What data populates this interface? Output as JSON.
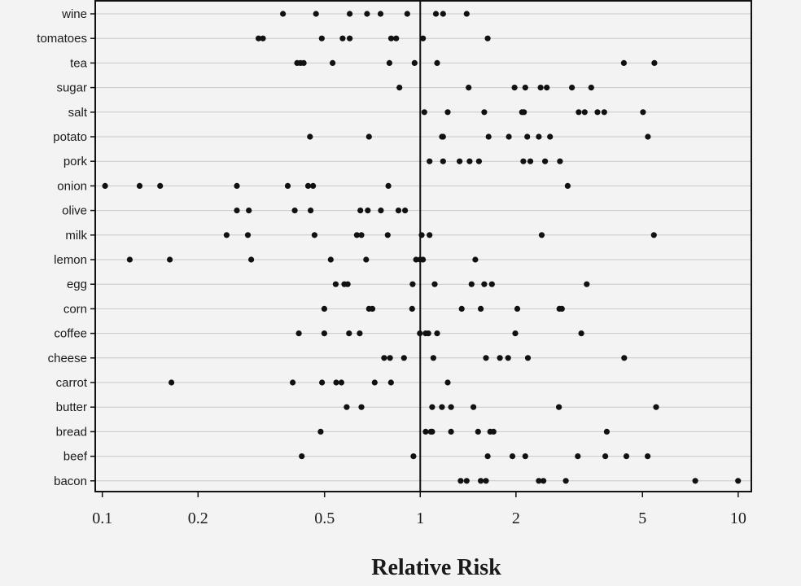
{
  "chart_data": {
    "type": "scatter",
    "title": "",
    "xlabel": "Relative Risk",
    "ylabel": "",
    "x_scale": "log",
    "xlim": [
      0.095,
      11.0
    ],
    "xticks": [
      0.1,
      0.2,
      0.5,
      1,
      2,
      5,
      10
    ],
    "xtick_labels": [
      "0.1",
      "0.2",
      "0.5",
      "1",
      "2",
      "5",
      "10"
    ],
    "reference_line": 1,
    "grid": "horizontal",
    "marker_color": "#111111",
    "categories": [
      "wine",
      "tomatoes",
      "tea",
      "sugar",
      "salt",
      "potato",
      "pork",
      "onion",
      "olive",
      "milk",
      "lemon",
      "egg",
      "corn",
      "coffee",
      "cheese",
      "carrot",
      "butter",
      "bread",
      "beef",
      "bacon"
    ],
    "points": {
      "wine": [
        0.37,
        0.47,
        0.6,
        0.68,
        0.75,
        0.91,
        1.12,
        1.18,
        1.4
      ],
      "tomatoes": [
        0.31,
        0.32,
        0.49,
        0.57,
        0.6,
        0.81,
        0.84,
        1.02,
        1.63
      ],
      "tea": [
        0.41,
        0.42,
        0.43,
        0.53,
        0.8,
        0.96,
        1.13,
        4.37,
        5.45
      ],
      "sugar": [
        0.86,
        1.42,
        1.98,
        2.14,
        2.39,
        2.5,
        3.0,
        3.45
      ],
      "salt": [
        1.03,
        1.22,
        1.59,
        2.09,
        2.12,
        3.15,
        3.29,
        3.61,
        3.79,
        5.02
      ],
      "potato": [
        0.45,
        0.69,
        1.17,
        1.18,
        1.64,
        1.9,
        2.17,
        2.36,
        2.56,
        5.2
      ],
      "pork": [
        1.07,
        1.18,
        1.33,
        1.43,
        1.53,
        2.11,
        2.22,
        2.47,
        2.75
      ],
      "onion": [
        0.102,
        0.131,
        0.152,
        0.265,
        0.383,
        0.444,
        0.46,
        0.794,
        2.91
      ],
      "olive": [
        0.265,
        0.289,
        0.403,
        0.452,
        0.648,
        0.684,
        0.752,
        0.854,
        0.896
      ],
      "milk": [
        0.246,
        0.287,
        0.465,
        0.632,
        0.653,
        0.79,
        1.01,
        1.07,
        2.41,
        5.43
      ],
      "lemon": [
        0.122,
        0.163,
        0.294,
        0.523,
        0.676,
        0.97,
        0.999,
        1.02,
        1.49
      ],
      "egg": [
        0.542,
        0.577,
        0.591,
        0.946,
        1.11,
        1.45,
        1.59,
        1.68,
        3.34
      ],
      "corn": [
        0.499,
        0.69,
        0.707,
        0.943,
        1.35,
        1.55,
        2.02,
        2.74,
        2.79
      ],
      "coffee": [
        0.415,
        0.499,
        0.597,
        0.645,
        0.997,
        1.04,
        1.06,
        1.13,
        1.99,
        3.21
      ],
      "cheese": [
        0.77,
        0.803,
        0.889,
        1.1,
        1.61,
        1.78,
        1.89,
        2.18,
        4.38
      ],
      "carrot": [
        0.165,
        0.397,
        0.491,
        0.544,
        0.565,
        0.719,
        0.809,
        1.22
      ],
      "butter": [
        0.587,
        0.653,
        1.09,
        1.17,
        1.25,
        1.47,
        2.73,
        5.52
      ],
      "bread": [
        0.486,
        1.04,
        1.08,
        1.09,
        1.25,
        1.52,
        1.66,
        1.7,
        3.86
      ],
      "beef": [
        0.424,
        0.952,
        1.63,
        1.95,
        2.14,
        3.13,
        3.82,
        4.45,
        5.19
      ],
      "bacon": [
        1.34,
        1.4,
        1.55,
        1.61,
        2.36,
        2.44,
        2.87,
        7.33,
        9.99
      ]
    }
  }
}
